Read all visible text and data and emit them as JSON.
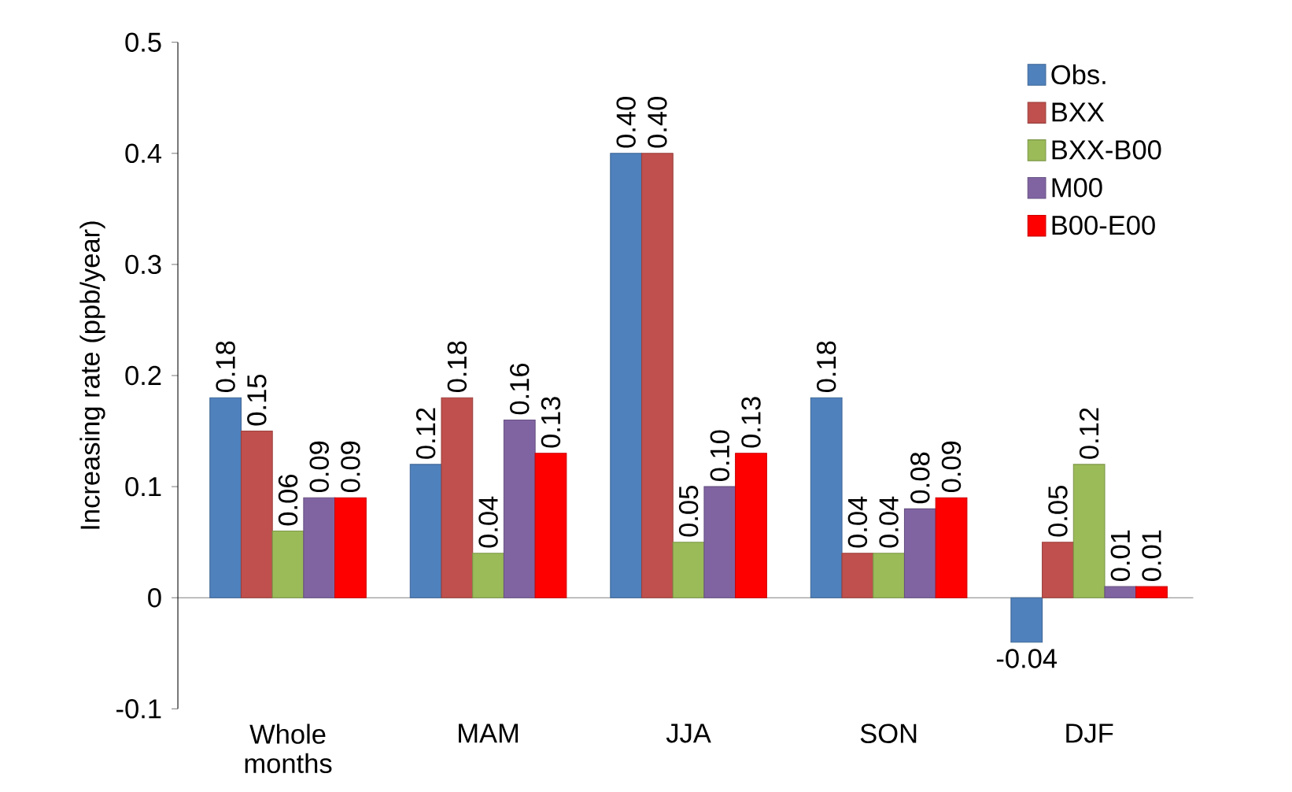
{
  "chart_data": {
    "type": "bar",
    "ylabel": "Increasing rate (ppb/year)",
    "categories": [
      "Whole months",
      "MAM",
      "JJA",
      "SON",
      "DJF"
    ],
    "series": [
      {
        "name": "Obs.",
        "color": "#4f81bd",
        "values": [
          0.18,
          0.12,
          0.4,
          0.18,
          -0.04
        ],
        "value_labels": [
          "0.18",
          "0.12",
          "0.40",
          "0.18",
          "-0.04"
        ]
      },
      {
        "name": "BXX",
        "color": "#c0504d",
        "values": [
          0.15,
          0.18,
          0.4,
          0.04,
          0.05
        ],
        "value_labels": [
          "0.15",
          "0.18",
          "0.40",
          "0.04",
          "0.05"
        ]
      },
      {
        "name": "BXX-B00",
        "color": "#9bbb59",
        "values": [
          0.06,
          0.04,
          0.05,
          0.04,
          0.12
        ],
        "value_labels": [
          "0.06",
          "0.04",
          "0.05",
          "0.04",
          "0.12"
        ]
      },
      {
        "name": "M00",
        "color": "#8064a2",
        "values": [
          0.09,
          0.16,
          0.1,
          0.08,
          0.01
        ],
        "value_labels": [
          "0.09",
          "0.16",
          "0.10",
          "0.08",
          "0.01"
        ]
      },
      {
        "name": "B00-E00",
        "color": "#ff0000",
        "values": [
          0.09,
          0.13,
          0.13,
          0.09,
          0.01
        ],
        "value_labels": [
          "0.09",
          "0.13",
          "0.13",
          "0.09",
          "0.01"
        ]
      }
    ],
    "ylim": [
      -0.1,
      0.5
    ],
    "yticks": [
      -0.1,
      0,
      0.1,
      0.2,
      0.3,
      0.4,
      0.5
    ],
    "legend": "top right"
  }
}
